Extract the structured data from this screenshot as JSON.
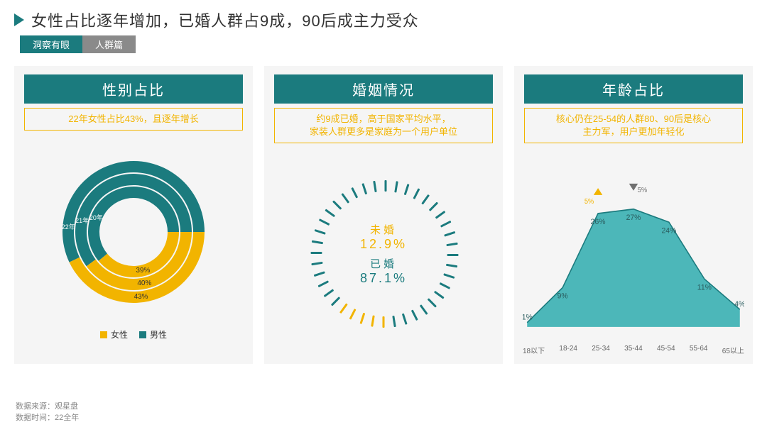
{
  "header": {
    "title": "女性占比逐年增加，已婚人群占9成，90后成主力受众",
    "tag1": "洞察有眼",
    "tag2": "人群篇"
  },
  "colors": {
    "teal": "#1b7b7e",
    "teal_light": "#3aa6a9",
    "yellow": "#f2b400",
    "gray": "#8a8a8a",
    "panel_bg": "#f5f5f5",
    "text": "#333333",
    "muted": "#888888"
  },
  "panel1": {
    "title": "性别占比",
    "subtitle": "22年女性占比43%，且逐年增长",
    "donut": {
      "rings": [
        {
          "year": "20年",
          "female": 39,
          "male": 61
        },
        {
          "year": "21年",
          "female": 40,
          "male": 60
        },
        {
          "year": "22年",
          "female": 43,
          "male": 57
        }
      ],
      "female_color": "#f2b400",
      "male_color": "#1b7b7e",
      "label_inner": "39%",
      "label_mid": "40%",
      "label_outer": "43%",
      "legend_female": "女性",
      "legend_male": "男性"
    }
  },
  "panel2": {
    "title": "婚姻情况",
    "subtitle": "约9成已婚，高于国家平均水平，\n家装人群更多是家庭为一个用户单位",
    "unmarried_label": "未婚",
    "unmarried_value": "12.9%",
    "married_label": "已婚",
    "married_value": "87.1%",
    "unmarried_pct": 12.9,
    "married_pct": 87.1,
    "tick_count": 40,
    "tick_color_on": "#f2b400",
    "tick_color_off": "#1b7b7e"
  },
  "panel3": {
    "title": "年龄占比",
    "subtitle": "核心仍在25-54的人群80、90后是核心\n主力军，用户更加年轻化",
    "area": {
      "categories": [
        "18以下",
        "18-24",
        "25-34",
        "35-44",
        "45-54",
        "55-64",
        "65以上"
      ],
      "values": [
        1,
        9,
        26,
        27,
        24,
        11,
        4
      ],
      "fill_color": "#3ab0b3",
      "stroke_color": "#1b7b7e",
      "labels": [
        "1%",
        "9%",
        "26%",
        "27%",
        "24%",
        "11%",
        "4%"
      ],
      "peak_up": {
        "index": 2,
        "text": "5%",
        "color": "#f2b400"
      },
      "peak_down": {
        "index": 3,
        "text": "5%",
        "color": "#707070"
      }
    }
  },
  "footer": {
    "line1": "数据来源：观星盘",
    "line2": "数据时间：22全年"
  }
}
